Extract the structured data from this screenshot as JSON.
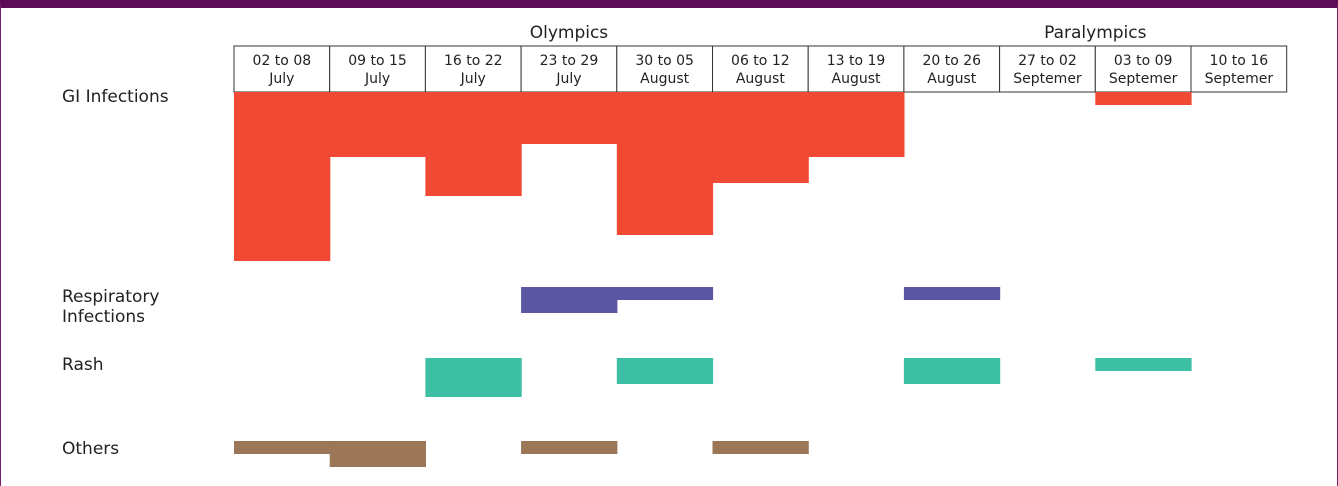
{
  "chart_data": {
    "type": "heatmap",
    "phases": [
      {
        "label": "Olympics",
        "start_week": 0,
        "end_week": 7
      },
      {
        "label": "Paralympics",
        "start_week": 7,
        "end_week": 11
      }
    ],
    "weeks": [
      {
        "line1": "02 to 08",
        "line2": "July"
      },
      {
        "line1": "09 to 15",
        "line2": "July"
      },
      {
        "line1": "16 to 22",
        "line2": "July"
      },
      {
        "line1": "23 to 29",
        "line2": "July"
      },
      {
        "line1": "30 to 05",
        "line2": "August"
      },
      {
        "line1": "06 to 12",
        "line2": "August"
      },
      {
        "line1": "13 to 19",
        "line2": "August"
      },
      {
        "line1": "20 to 26",
        "line2": "August"
      },
      {
        "line1": "27 to 02",
        "line2": "Septemer"
      },
      {
        "line1": "03 to 09",
        "line2": "Septemer"
      },
      {
        "line1": "10 to 16",
        "line2": "Septemer"
      }
    ],
    "rows": [
      {
        "label_lines": [
          "GI Infections"
        ],
        "color": "#f04a34",
        "values": [
          13,
          5,
          8,
          4,
          11,
          7,
          5,
          0,
          0,
          1,
          0
        ]
      },
      {
        "label_lines": [
          "Respiratory",
          "Infections"
        ],
        "color": "#5b56a4",
        "values": [
          0,
          0,
          0,
          2,
          1,
          0,
          0,
          1,
          0,
          0,
          0
        ]
      },
      {
        "label_lines": [
          "Rash"
        ],
        "color": "#3cbfa2",
        "values": [
          0,
          0,
          3,
          0,
          2,
          0,
          0,
          2,
          0,
          1,
          0
        ]
      },
      {
        "label_lines": [
          "Others"
        ],
        "color": "#9b7657",
        "values": [
          1,
          2,
          0,
          1,
          0,
          1,
          0,
          0,
          0,
          0,
          0
        ]
      }
    ]
  }
}
